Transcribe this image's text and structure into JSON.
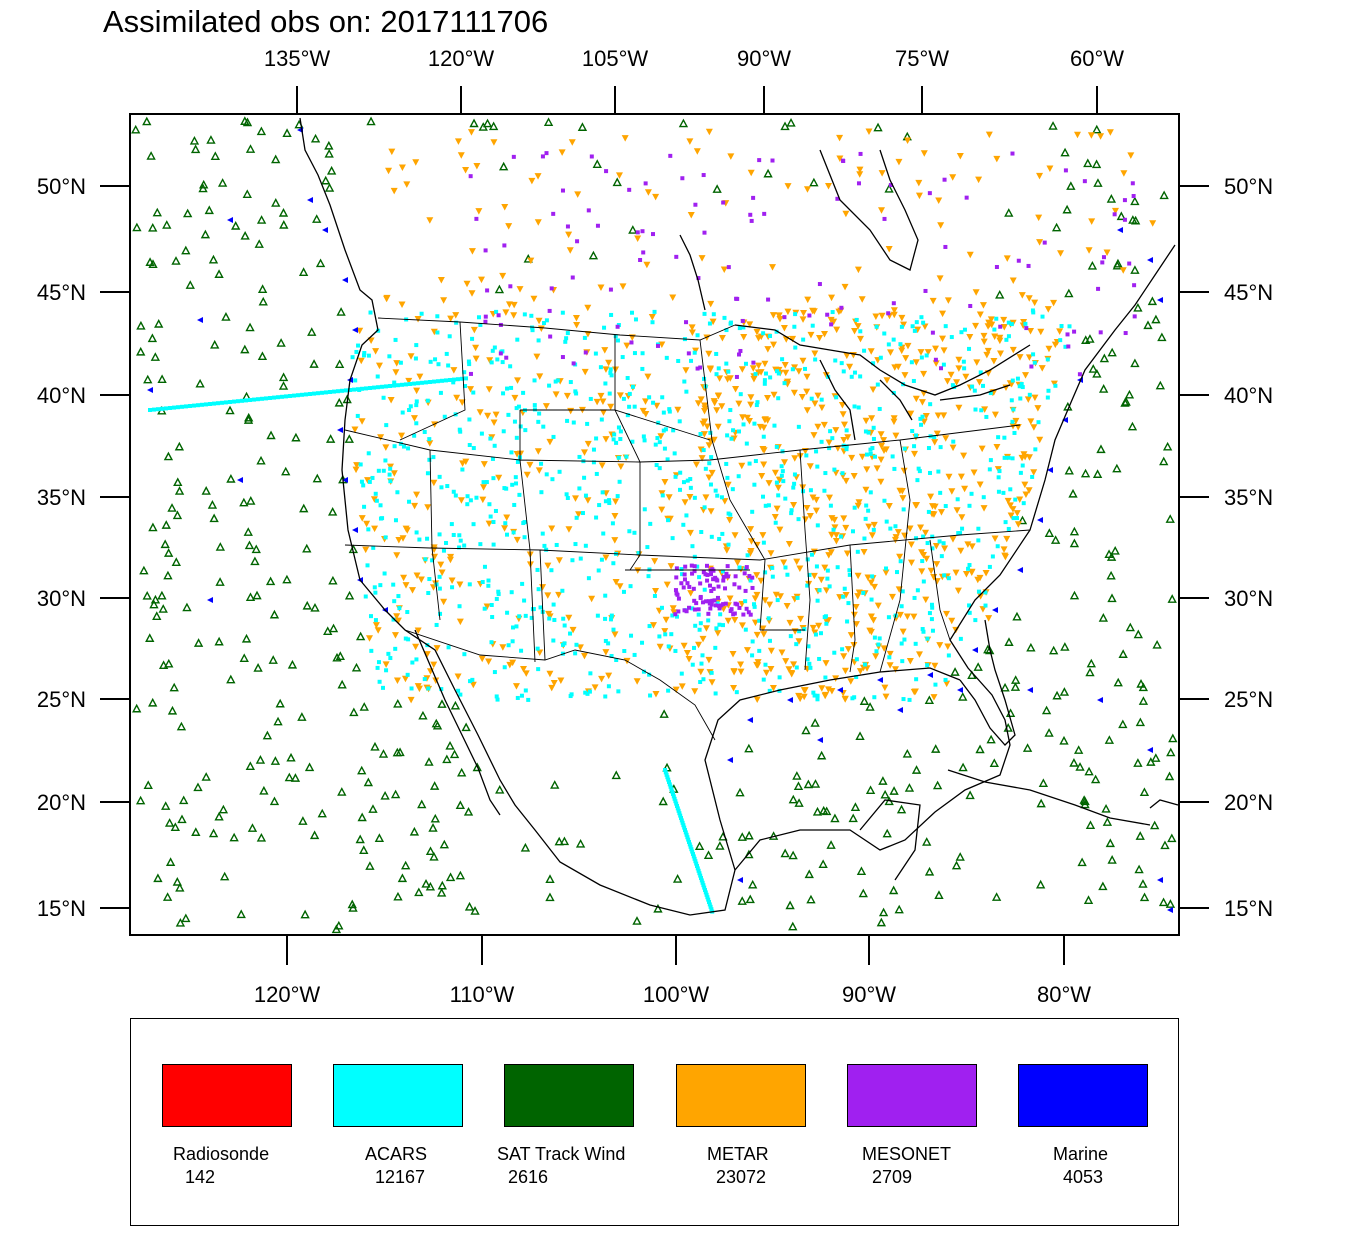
{
  "title": "Assimilated obs on: 2017111706",
  "colors": {
    "radiosonde": "#ff0000",
    "acars": "#00ffff",
    "sat_track_wind": "#006400",
    "metar": "#ffa500",
    "mesonet": "#a020f0",
    "marine": "#0000ff"
  },
  "axes": {
    "top_lon_labels": [
      "135°W",
      "120°W",
      "105°W",
      "90°W",
      "75°W",
      "60°W"
    ],
    "bottom_lon_labels": [
      "120°W",
      "110°W",
      "100°W",
      "90°W",
      "80°W"
    ],
    "lat_labels": [
      "50°N",
      "45°N",
      "40°N",
      "35°N",
      "30°N",
      "25°N",
      "20°N",
      "15°N"
    ]
  },
  "legend": [
    {
      "name": "Radiosonde",
      "count": "142",
      "color": "#ff0000"
    },
    {
      "name": "ACARS",
      "count": "12167",
      "color": "#00ffff"
    },
    {
      "name": "SAT Track Wind",
      "count": "2616",
      "color": "#006400"
    },
    {
      "name": "METAR",
      "count": "23072",
      "color": "#ffa500"
    },
    {
      "name": "MESONET",
      "count": "2709",
      "color": "#a020f0"
    },
    {
      "name": "Marine",
      "count": "4053",
      "color": "#0000ff"
    }
  ]
}
